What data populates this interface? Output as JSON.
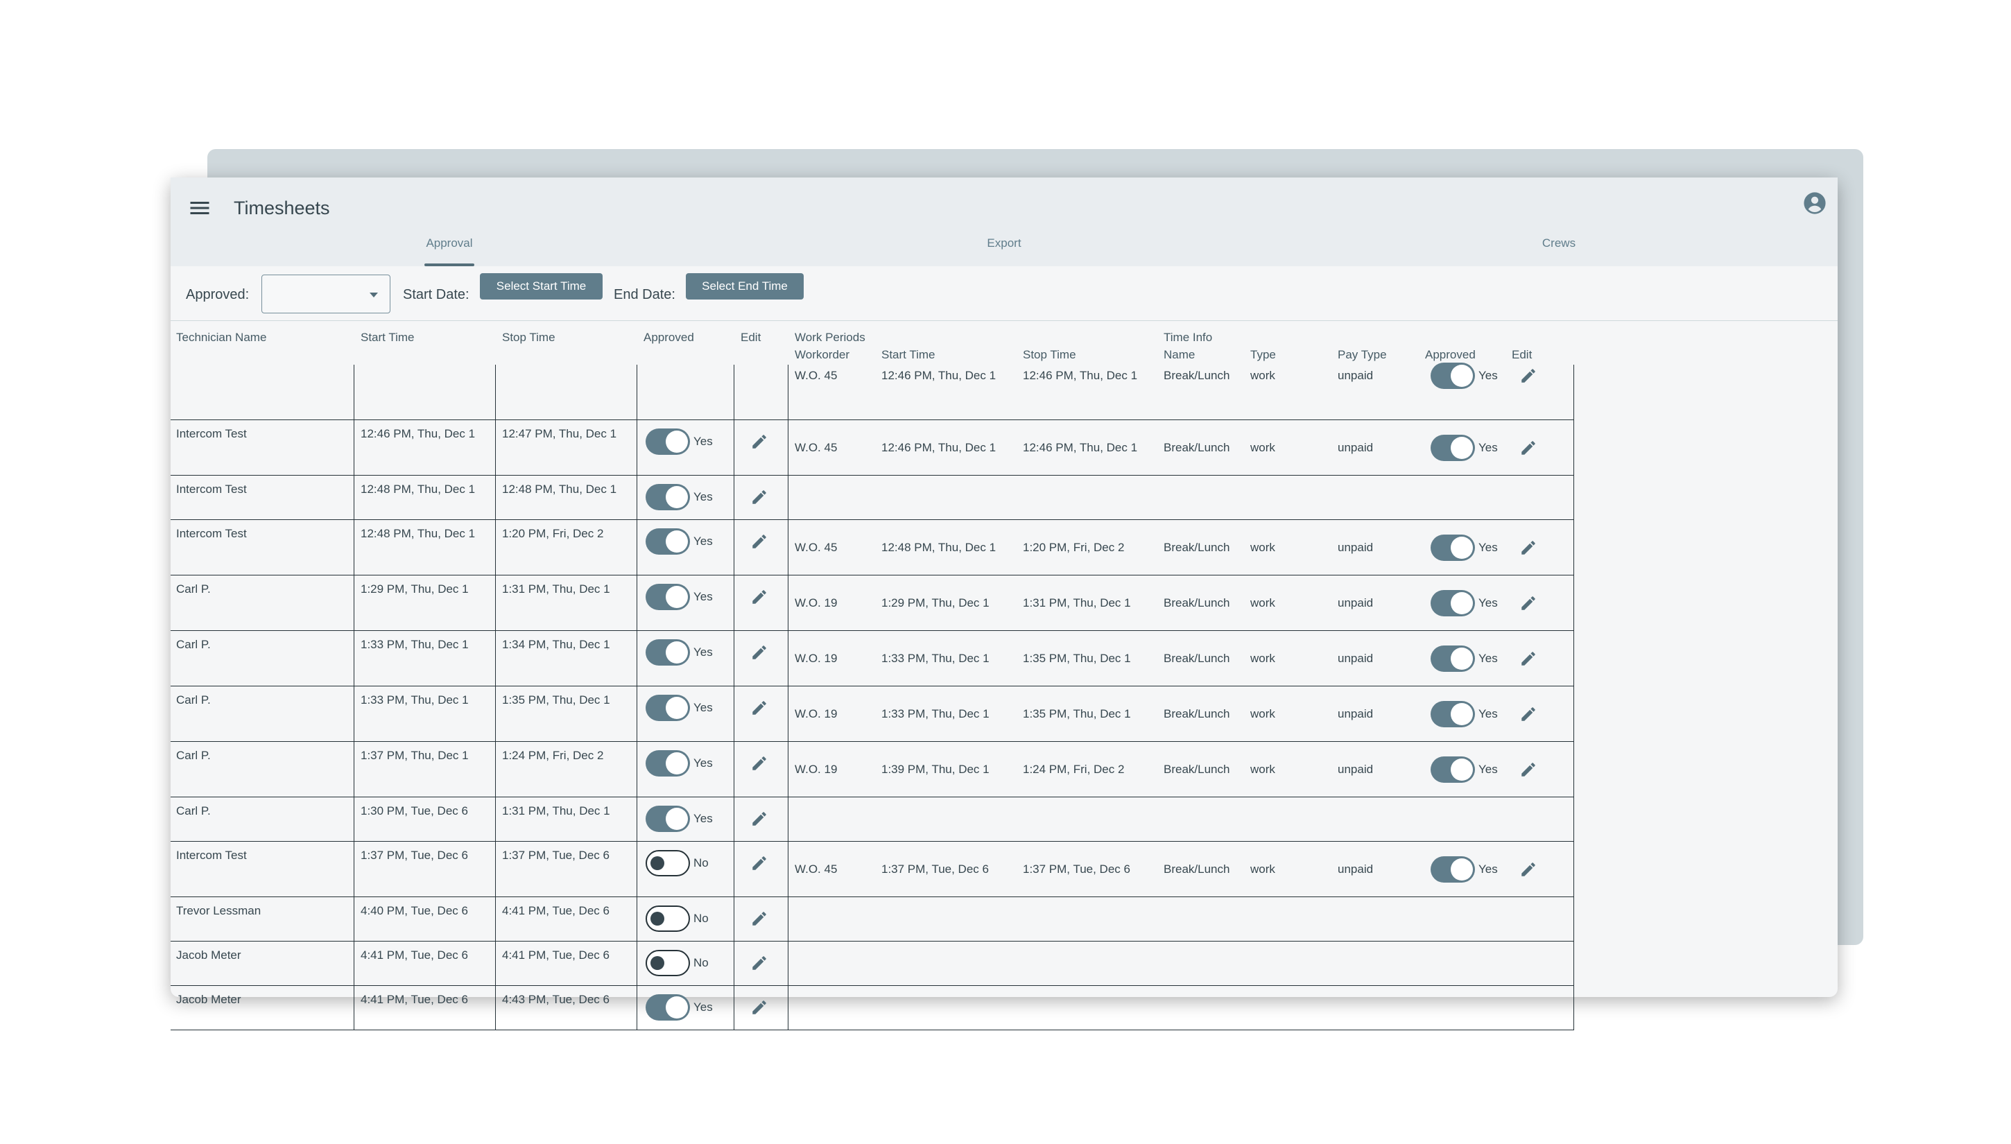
{
  "app": {
    "title": "Timesheets",
    "tabs": [
      {
        "label": "Approval"
      },
      {
        "label": "Export"
      },
      {
        "label": "Crews"
      }
    ]
  },
  "filters": {
    "approved_label": "Approved:",
    "approved_value": "",
    "start_label": "Start Date:",
    "start_button": "Select Start Time",
    "end_label": "End Date:",
    "end_button": "Select End Time"
  },
  "columns": {
    "tech": "Technician Name",
    "start": "Start Time",
    "stop": "Stop Time",
    "approved": "Approved",
    "edit": "Edit",
    "work_periods": "Work Periods",
    "workorder": "Workorder",
    "wp_start": "Start Time",
    "wp_stop": "Stop Time",
    "time_info": "Time Info",
    "name": "Name",
    "type": "Type",
    "pay_type": "Pay Type",
    "wp_approved": "Approved",
    "wp_edit": "Edit"
  },
  "rows": [
    {
      "tech": "",
      "start": "",
      "stop": "",
      "approved": null,
      "approved_text": "",
      "periods": [
        {
          "workorder": "W.O. 45",
          "start": "12:46 PM, Thu, Dec 1",
          "stop": "12:46 PM, Thu, Dec 1",
          "name": "Break/Lunch",
          "type": "work",
          "pay_type": "unpaid",
          "approved": true,
          "approved_text": "Yes"
        }
      ]
    },
    {
      "tech": "Intercom Test",
      "start": "12:46 PM, Thu, Dec 1",
      "stop": "12:47 PM, Thu, Dec 1",
      "approved": true,
      "approved_text": "Yes",
      "periods": [
        {
          "workorder": "W.O. 45",
          "start": "12:46 PM, Thu, Dec 1",
          "stop": "12:46 PM, Thu, Dec 1",
          "name": "Break/Lunch",
          "type": "work",
          "pay_type": "unpaid",
          "approved": true,
          "approved_text": "Yes"
        }
      ]
    },
    {
      "tech": "Intercom Test",
      "start": "12:48 PM, Thu, Dec 1",
      "stop": "12:48 PM, Thu, Dec 1",
      "approved": true,
      "approved_text": "Yes",
      "periods": []
    },
    {
      "tech": "Intercom Test",
      "start": "12:48 PM, Thu, Dec 1",
      "stop": "1:20 PM, Fri, Dec 2",
      "approved": true,
      "approved_text": "Yes",
      "periods": [
        {
          "workorder": "W.O. 45",
          "start": "12:48 PM, Thu, Dec 1",
          "stop": "1:20 PM, Fri, Dec 2",
          "name": "Break/Lunch",
          "type": "work",
          "pay_type": "unpaid",
          "approved": true,
          "approved_text": "Yes"
        }
      ]
    },
    {
      "tech": "Carl P.",
      "start": "1:29 PM, Thu, Dec 1",
      "stop": "1:31 PM, Thu, Dec 1",
      "approved": true,
      "approved_text": "Yes",
      "periods": [
        {
          "workorder": "W.O. 19",
          "start": "1:29 PM, Thu, Dec 1",
          "stop": "1:31 PM, Thu, Dec 1",
          "name": "Break/Lunch",
          "type": "work",
          "pay_type": "unpaid",
          "approved": true,
          "approved_text": "Yes"
        }
      ]
    },
    {
      "tech": "Carl P.",
      "start": "1:33 PM, Thu, Dec 1",
      "stop": "1:34 PM, Thu, Dec 1",
      "approved": true,
      "approved_text": "Yes",
      "periods": [
        {
          "workorder": "W.O. 19",
          "start": "1:33 PM, Thu, Dec 1",
          "stop": "1:35 PM, Thu, Dec 1",
          "name": "Break/Lunch",
          "type": "work",
          "pay_type": "unpaid",
          "approved": true,
          "approved_text": "Yes"
        }
      ]
    },
    {
      "tech": "Carl P.",
      "start": "1:33 PM, Thu, Dec 1",
      "stop": "1:35 PM, Thu, Dec 1",
      "approved": true,
      "approved_text": "Yes",
      "periods": [
        {
          "workorder": "W.O. 19",
          "start": "1:33 PM, Thu, Dec 1",
          "stop": "1:35 PM, Thu, Dec 1",
          "name": "Break/Lunch",
          "type": "work",
          "pay_type": "unpaid",
          "approved": true,
          "approved_text": "Yes"
        }
      ]
    },
    {
      "tech": "Carl P.",
      "start": "1:37 PM, Thu, Dec 1",
      "stop": "1:24 PM, Fri, Dec 2",
      "approved": true,
      "approved_text": "Yes",
      "periods": [
        {
          "workorder": "W.O. 19",
          "start": "1:39 PM, Thu, Dec 1",
          "stop": "1:24 PM, Fri, Dec 2",
          "name": "Break/Lunch",
          "type": "work",
          "pay_type": "unpaid",
          "approved": true,
          "approved_text": "Yes"
        }
      ]
    },
    {
      "tech": "Carl P.",
      "start": "1:30 PM, Tue, Dec 6",
      "stop": "1:31 PM, Thu, Dec 1",
      "approved": true,
      "approved_text": "Yes",
      "periods": []
    },
    {
      "tech": "Intercom Test",
      "start": "1:37 PM, Tue, Dec 6",
      "stop": "1:37 PM, Tue, Dec 6",
      "approved": false,
      "approved_text": "No",
      "periods": [
        {
          "workorder": "W.O. 45",
          "start": "1:37 PM, Tue, Dec 6",
          "stop": "1:37 PM, Tue, Dec 6",
          "name": "Break/Lunch",
          "type": "work",
          "pay_type": "unpaid",
          "approved": true,
          "approved_text": "Yes"
        }
      ]
    },
    {
      "tech": "Trevor Lessman",
      "start": "4:40 PM, Tue, Dec 6",
      "stop": "4:41 PM, Tue, Dec 6",
      "approved": false,
      "approved_text": "No",
      "periods": []
    },
    {
      "tech": "Jacob Meter",
      "start": "4:41 PM, Tue, Dec 6",
      "stop": "4:41 PM, Tue, Dec 6",
      "approved": false,
      "approved_text": "No",
      "periods": []
    },
    {
      "tech": "Jacob Meter",
      "start": "4:41 PM, Tue, Dec 6",
      "stop": "4:43 PM, Tue, Dec 6",
      "approved": true,
      "approved_text": "Yes",
      "periods": []
    }
  ],
  "icons": {
    "menu": "menu-icon",
    "account": "account-circle-icon",
    "dropdown": "chevron-down-icon",
    "edit": "pencil-icon"
  }
}
